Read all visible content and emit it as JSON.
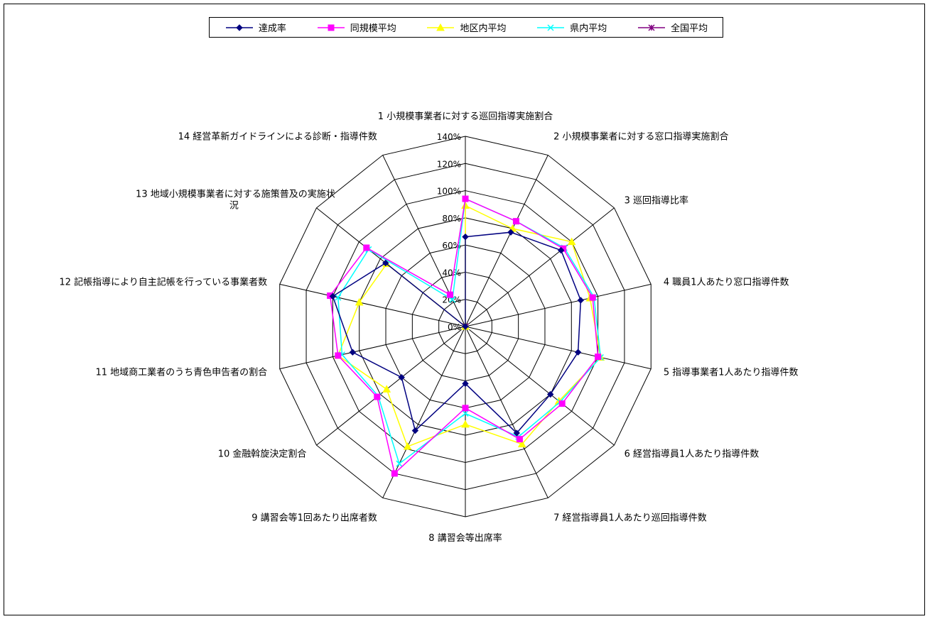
{
  "chart_data": {
    "type": "radar",
    "title": "",
    "categories": [
      "1 小規模事業者に対する巡回指導実施割合",
      "2 小規模事業者に対する窓口指導実施割合",
      "3 巡回指導比率",
      "4 職員1人あたり窓口指導件数",
      "5 指導事業者1人あたり指導件数",
      "6 経営指導員1人あたり指導件数",
      "7 経営指導員1人あたり巡回指導件数",
      "8 講習会等出席率",
      "9 講習会等1回あたり出席者数",
      "10 金融斡旋決定割合",
      "11 地域商工業者のうち青色申告者の割合",
      "12 記帳指導により自主記帳を行っている事業者数",
      "13 地域小規模事業者に対する施策普及の実施状況",
      "14 経営革新ガイドラインによる診断・指導件数"
    ],
    "ticks": [
      "0%",
      "20%",
      "40%",
      "60%",
      "80%",
      "100%",
      "120%",
      "140%"
    ],
    "rmax": 140,
    "series": [
      {
        "name": "達成率",
        "color": "#000080",
        "marker": "diamond",
        "values": [
          66,
          77,
          90,
          87,
          85,
          80,
          87,
          42,
          85,
          60,
          85,
          100,
          75,
          0
        ]
      },
      {
        "name": "同規模平均",
        "color": "#FF00FF",
        "marker": "square",
        "values": [
          94,
          86,
          92,
          96,
          100,
          91,
          92,
          60,
          120,
          83,
          96,
          102,
          93,
          26
        ]
      },
      {
        "name": "地区内平均",
        "color": "#FFFF00",
        "marker": "triangle",
        "values": [
          89,
          80,
          100,
          94,
          102,
          88,
          96,
          72,
          98,
          74,
          96,
          80,
          74,
          0
        ]
      },
      {
        "name": "県内平均",
        "color": "#00FFFF",
        "marker": "x",
        "values": [
          94,
          86,
          93,
          97,
          102,
          89,
          90,
          64,
          112,
          82,
          93,
          96,
          91,
          22
        ]
      },
      {
        "name": "全国平均",
        "color": "#800080",
        "marker": "star",
        "values": [
          0,
          0,
          0,
          0,
          0,
          0,
          0,
          0,
          0,
          0,
          0,
          0,
          0,
          0
        ]
      }
    ]
  }
}
